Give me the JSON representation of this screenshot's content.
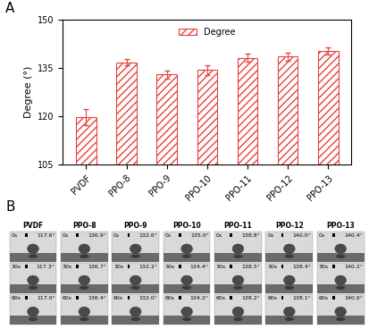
{
  "chart_data": {
    "type": "bar",
    "title": "A",
    "categories": [
      "PVDF",
      "PPO-8",
      "PPO-9",
      "PPO-10",
      "PPO-11",
      "PPO-12",
      "PPO-13"
    ],
    "series": [
      {
        "name": "Degree",
        "color": "#e8413c",
        "values": [
          119.7,
          136.8,
          133.0,
          134.4,
          138.2,
          138.5,
          140.3
        ],
        "errors": [
          2.5,
          0.9,
          1.3,
          1.5,
          1.3,
          1.2,
          1.1
        ]
      }
    ],
    "y_label": "Degree (°)",
    "ylim": [
      105,
      150
    ],
    "yticks": [
      105,
      120,
      135,
      150
    ],
    "legend": "upper center",
    "grid": false
  },
  "image_grid": {
    "label": "B",
    "columns": [
      "PVDF",
      "PPO-8",
      "PPO-9",
      "PPO-10",
      "PPO-11",
      "PPO-12",
      "PPO-13"
    ],
    "rows": [
      "0s",
      "30s",
      "60s"
    ],
    "cells": [
      [
        "117.6°",
        "136.9°",
        "132.6°",
        "135.0°",
        "138.8°",
        "140.0°",
        "140.4°"
      ],
      [
        "117.3°",
        "136.7°",
        "132.2°",
        "134.4°",
        "138.5°",
        "138.4°",
        "140.2°"
      ],
      [
        "117.0°",
        "136.4°",
        "132.0°",
        "134.2°",
        "138.2°",
        "138.1°",
        "140.0°"
      ]
    ]
  }
}
